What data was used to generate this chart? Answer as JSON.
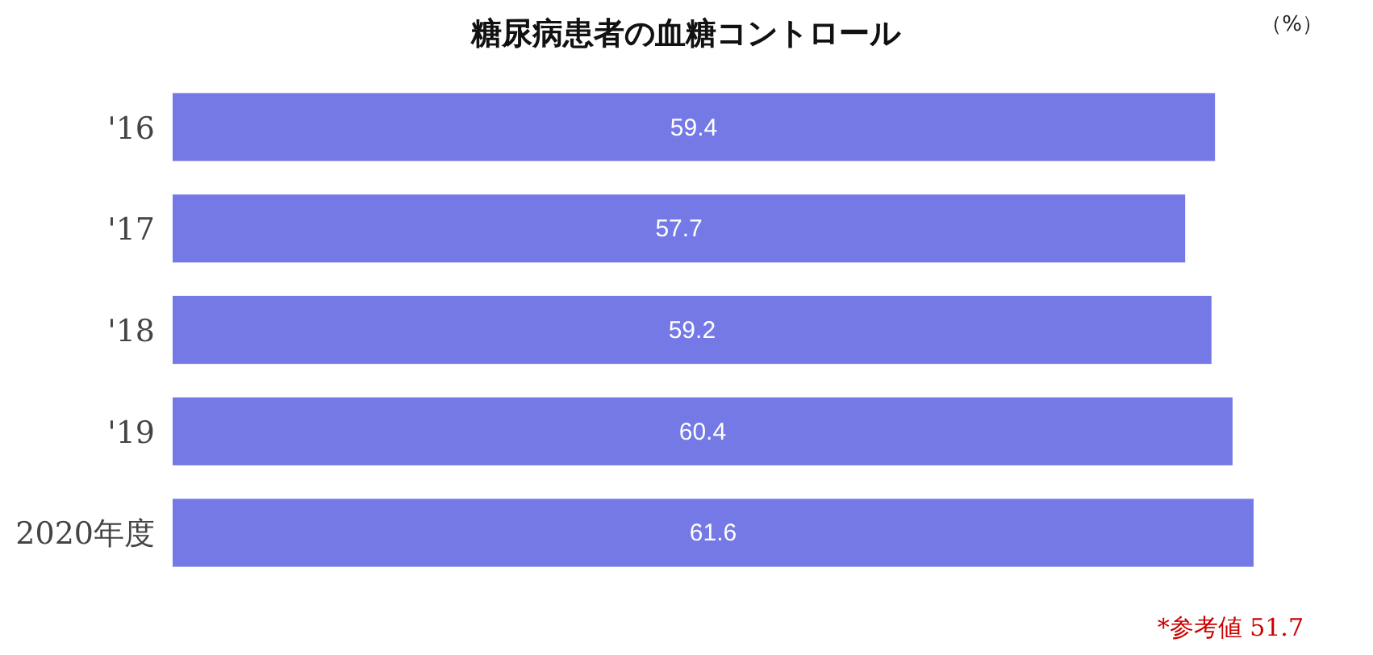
{
  "chart_data": {
    "type": "bar",
    "orientation": "horizontal",
    "title": "糖尿病患者の血糖コントロール",
    "categories": [
      "'16",
      "'17",
      "'18",
      "'19",
      "2020年度"
    ],
    "values": [
      59.4,
      57.7,
      59.2,
      60.4,
      61.6
    ],
    "color": "#7479e6",
    "data_labels": true,
    "annotations": [
      "（%）",
      "*参考値 51.7"
    ]
  }
}
